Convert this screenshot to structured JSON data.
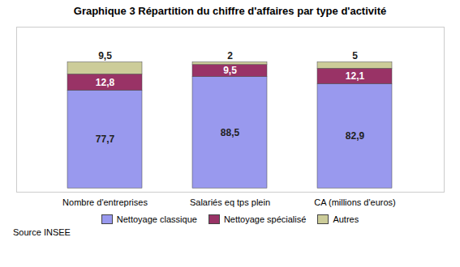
{
  "chart_data": {
    "type": "bar",
    "stacked": true,
    "title": "Graphique 3 Répartition du chiffre d'affaires par type d'activité",
    "categories": [
      "Nombre d'entreprises",
      "Salariés eq tps plein",
      "CA (millions d'euros)"
    ],
    "series": [
      {
        "name": "Nettoyage classique",
        "color": "#9999EE",
        "values": [
          77.7,
          88.5,
          82.9
        ],
        "value_labels": [
          "77,7",
          "88,5",
          "82,9"
        ]
      },
      {
        "name": "Nettoyage spécialisé",
        "color": "#993366",
        "values": [
          12.8,
          9.5,
          12.1
        ],
        "value_labels": [
          "12,8",
          "9,5",
          "12,1"
        ]
      },
      {
        "name": "Autres",
        "color": "#CCCC99",
        "values": [
          9.5,
          2.0,
          5.0
        ],
        "value_labels": [
          "9,5",
          "2",
          "5"
        ]
      }
    ],
    "ylim": [
      -3,
      128
    ],
    "yticks": [],
    "tick_labels": "x",
    "data_labels": true,
    "grid": false,
    "legend": "bottom",
    "source": "Source INSEE"
  }
}
